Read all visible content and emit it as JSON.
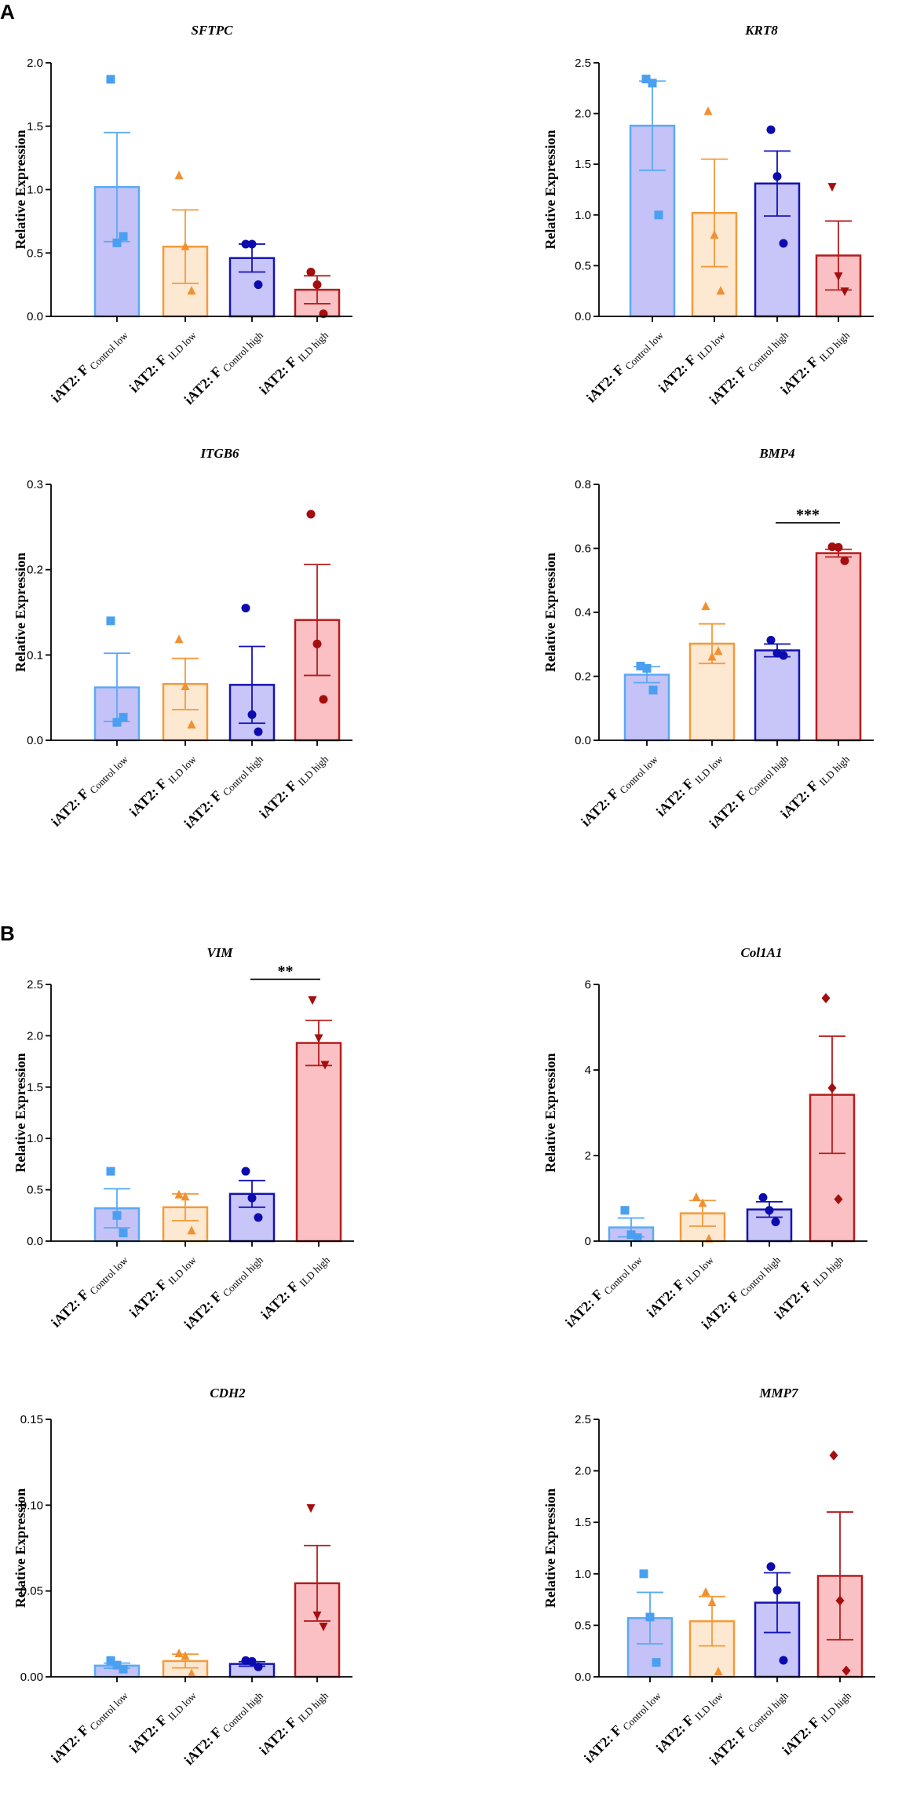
{
  "panel_labels": [
    "A",
    "B"
  ],
  "groups": [
    {
      "prefix": "iAT2: F",
      "sub": "Control low"
    },
    {
      "prefix": "iAT2: F",
      "sub": "ILD low"
    },
    {
      "prefix": "iAT2: F",
      "sub": "Control high"
    },
    {
      "prefix": "iAT2: F",
      "sub": "ILD high"
    }
  ],
  "colors": {
    "group_fill": [
      "#c5c2f7",
      "#fde8d2",
      "#c8c5f8",
      "#fbc0c3"
    ],
    "group_stroke": [
      "#5aaaf5",
      "#f59a3a",
      "#1313b3",
      "#b51d1d"
    ],
    "group_marker": [
      "#4a9ff0",
      "#f29030",
      "#0b0bae",
      "#a50e0e"
    ]
  },
  "marker_shapes": {
    "A": [
      "square",
      "triangle",
      "circle",
      "circle"
    ],
    "B": [
      "square",
      "triangle",
      "circle",
      "triangle-down"
    ]
  },
  "chart_data": [
    {
      "panel": "A",
      "type": "bar",
      "title": "SFTPC",
      "ylabel": "Relative Expression",
      "ylim": [
        0,
        2.0
      ],
      "yticks": [
        0.0,
        0.5,
        1.0,
        1.5,
        2.0
      ],
      "ytick_labels": [
        "0.0",
        "0.5",
        "1.0",
        "1.5",
        "2.0"
      ],
      "categories": [
        "iAT2: F Control low",
        "iAT2: F ILD low",
        "iAT2: F Control high",
        "iAT2: F ILD high"
      ],
      "values": [
        1.02,
        0.55,
        0.46,
        0.21
      ],
      "errors": [
        0.43,
        0.29,
        0.11,
        0.11
      ],
      "points": [
        [
          1.87,
          0.58,
          0.63
        ],
        [
          1.11,
          0.55,
          0.2
        ],
        [
          0.57,
          0.57,
          0.25
        ],
        [
          0.35,
          0.25,
          0.02
        ]
      ],
      "markers": [
        "square",
        "triangle",
        "circle",
        "circle"
      ],
      "significance": null
    },
    {
      "panel": "A",
      "type": "bar",
      "title": "KRT8",
      "ylabel": "Relative Expression",
      "ylim": [
        0,
        2.5
      ],
      "yticks": [
        0.0,
        0.5,
        1.0,
        1.5,
        2.0,
        2.5
      ],
      "ytick_labels": [
        "0.0",
        "0.5",
        "1.0",
        "1.5",
        "2.0",
        "2.5"
      ],
      "categories": [
        "iAT2: F Control low",
        "iAT2: F ILD low",
        "iAT2: F Control high",
        "iAT2: F ILD high"
      ],
      "values": [
        1.88,
        1.02,
        1.31,
        0.6
      ],
      "errors": [
        0.44,
        0.53,
        0.32,
        0.34
      ],
      "points": [
        [
          2.34,
          2.3,
          1.0
        ],
        [
          2.02,
          0.8,
          0.25
        ],
        [
          1.84,
          1.38,
          0.72
        ],
        [
          1.28,
          0.4,
          0.25
        ]
      ],
      "markers": [
        "square",
        "triangle",
        "circle",
        "triangle-down"
      ],
      "significance": null
    },
    {
      "panel": "A",
      "type": "bar",
      "title": "ITGB6",
      "ylabel": "Relative Expression",
      "ylim": [
        0,
        0.3
      ],
      "yticks": [
        0.0,
        0.1,
        0.2,
        0.3
      ],
      "ytick_labels": [
        "0.0",
        "0.1",
        "0.2",
        "0.3"
      ],
      "categories": [
        "iAT2: F Control low",
        "iAT2: F ILD low",
        "iAT2: F Control high",
        "iAT2: F ILD high"
      ],
      "values": [
        0.062,
        0.066,
        0.065,
        0.141
      ],
      "errors": [
        0.04,
        0.03,
        0.045,
        0.065
      ],
      "points": [
        [
          0.14,
          0.021,
          0.027
        ],
        [
          0.118,
          0.063,
          0.018
        ],
        [
          0.155,
          0.03,
          0.01
        ],
        [
          0.265,
          0.113,
          0.048
        ]
      ],
      "markers": [
        "square",
        "triangle",
        "circle",
        "circle"
      ],
      "significance": null
    },
    {
      "panel": "A",
      "type": "bar",
      "title": "BMP4",
      "ylabel": "Relative Expression",
      "ylim": [
        0,
        0.8
      ],
      "yticks": [
        0.0,
        0.2,
        0.4,
        0.6,
        0.8
      ],
      "ytick_labels": [
        "0.0",
        "0.2",
        "0.4",
        "0.6",
        "0.8"
      ],
      "categories": [
        "iAT2: F Control low",
        "iAT2: F ILD low",
        "iAT2: F Control high",
        "iAT2: F ILD high"
      ],
      "values": [
        0.205,
        0.302,
        0.281,
        0.585
      ],
      "errors": [
        0.025,
        0.062,
        0.02,
        0.012
      ],
      "points": [
        [
          0.232,
          0.225,
          0.157
        ],
        [
          0.418,
          0.26,
          0.278
        ],
        [
          0.313,
          0.272,
          0.265
        ],
        [
          0.605,
          0.603,
          0.561
        ]
      ],
      "markers": [
        "square",
        "triangle",
        "circle",
        "circle"
      ],
      "significance": {
        "from": 2,
        "to": 3,
        "y": 0.68,
        "label": "***"
      }
    },
    {
      "panel": "B",
      "type": "bar",
      "title": "VIM",
      "ylabel": "Relative Expression",
      "ylim": [
        0,
        2.5
      ],
      "yticks": [
        0.0,
        0.5,
        1.0,
        1.5,
        2.0,
        2.5
      ],
      "ytick_labels": [
        "0.0",
        "0.5",
        "1.0",
        "1.5",
        "2.0",
        "2.5"
      ],
      "categories": [
        "iAT2: F Control low",
        "iAT2: F ILD low",
        "iAT2: F Control high",
        "iAT2: F ILD high"
      ],
      "values": [
        0.32,
        0.33,
        0.46,
        1.93
      ],
      "errors": [
        0.19,
        0.13,
        0.13,
        0.22
      ],
      "points": [
        [
          0.68,
          0.25,
          0.08
        ],
        [
          0.45,
          0.43,
          0.1
        ],
        [
          0.68,
          0.42,
          0.23
        ],
        [
          2.35,
          1.98,
          1.72
        ]
      ],
      "markers": [
        "square",
        "triangle",
        "circle",
        "triangle-down"
      ],
      "significance": {
        "from": 2,
        "to": 3,
        "y": 2.55,
        "label": "**"
      }
    },
    {
      "panel": "B",
      "type": "bar",
      "title": "Col1A1",
      "ylabel": "Relative Expression",
      "ylim": [
        0,
        6
      ],
      "yticks": [
        0,
        2,
        4,
        6
      ],
      "ytick_labels": [
        "0",
        "2",
        "4",
        "6"
      ],
      "categories": [
        "iAT2: F Control low",
        "iAT2: F ILD low",
        "iAT2: F Control high",
        "iAT2: F ILD high"
      ],
      "values": [
        0.32,
        0.65,
        0.74,
        3.42
      ],
      "errors": [
        0.22,
        0.3,
        0.18,
        1.37
      ],
      "points": [
        [
          0.72,
          0.15,
          0.08
        ],
        [
          1.02,
          0.88,
          0.05
        ],
        [
          1.02,
          0.72,
          0.45
        ],
        [
          5.68,
          3.58,
          0.98
        ]
      ],
      "markers": [
        "square",
        "triangle",
        "circle",
        "diamond"
      ],
      "significance": null
    },
    {
      "panel": "B",
      "type": "bar",
      "title": "CDH2",
      "ylabel": "Relative Expression",
      "ylim": [
        0,
        0.15
      ],
      "yticks": [
        0.0,
        0.05,
        0.1,
        0.15
      ],
      "ytick_labels": [
        "0.00",
        "0.05",
        "0.10",
        "0.15"
      ],
      "categories": [
        "iAT2: F Control low",
        "iAT2: F ILD low",
        "iAT2: F Control high",
        "iAT2: F ILD high"
      ],
      "values": [
        0.0065,
        0.0092,
        0.0075,
        0.0545
      ],
      "errors": [
        0.0015,
        0.004,
        0.0013,
        0.022
      ],
      "points": [
        [
          0.0095,
          0.0068,
          0.0045
        ],
        [
          0.0135,
          0.012,
          0.0018
        ],
        [
          0.0095,
          0.009,
          0.0058
        ],
        [
          0.0985,
          0.036,
          0.0295
        ]
      ],
      "markers": [
        "square",
        "triangle",
        "circle",
        "triangle-down"
      ],
      "significance": null
    },
    {
      "panel": "B",
      "type": "bar",
      "title": "MMP7",
      "ylabel": "Relative Expression",
      "ylim": [
        0,
        2.5
      ],
      "yticks": [
        0.0,
        0.5,
        1.0,
        1.5,
        2.0,
        2.5
      ],
      "ytick_labels": [
        "0.0",
        "0.5",
        "1.0",
        "1.5",
        "2.0",
        "2.5"
      ],
      "categories": [
        "iAT2: F Control low",
        "iAT2: F ILD low",
        "iAT2: F Control high",
        "iAT2: F ILD high"
      ],
      "values": [
        0.57,
        0.54,
        0.72,
        0.98
      ],
      "errors": [
        0.25,
        0.24,
        0.29,
        0.62
      ],
      "points": [
        [
          1.0,
          0.58,
          0.14
        ],
        [
          0.82,
          0.72,
          0.05
        ],
        [
          1.07,
          0.84,
          0.16
        ],
        [
          2.15,
          0.74,
          0.06
        ]
      ],
      "markers": [
        "square",
        "triangle",
        "circle",
        "diamond"
      ],
      "significance": null
    }
  ]
}
